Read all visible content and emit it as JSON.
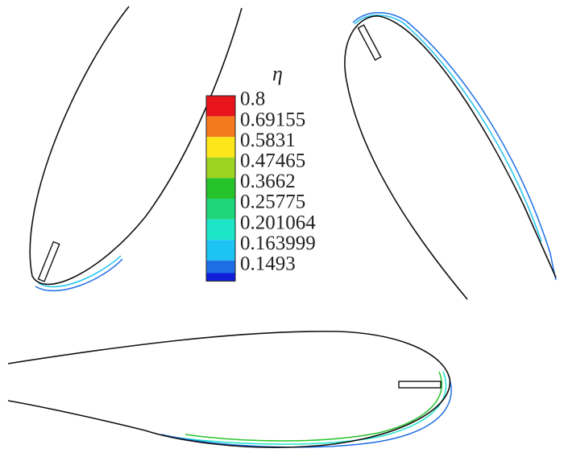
{
  "legend": {
    "title": "η",
    "levels": [
      {
        "label": "0.8",
        "color": "#e8141c"
      },
      {
        "label": "0.69155",
        "color": "#f57a1e"
      },
      {
        "label": "0.5831",
        "color": "#fde61a"
      },
      {
        "label": "0.47465",
        "color": "#9dd321"
      },
      {
        "label": "0.3662",
        "color": "#27c32b"
      },
      {
        "label": "0.25775",
        "color": "#1fd67a"
      },
      {
        "label": "0.201064",
        "color": "#1de6c8"
      },
      {
        "label": "0.163999",
        "color": "#1dc3f2"
      },
      {
        "label": "0.1493",
        "color": "#1e6ee6"
      }
    ],
    "bottom_color": "#1020d8"
  }
}
